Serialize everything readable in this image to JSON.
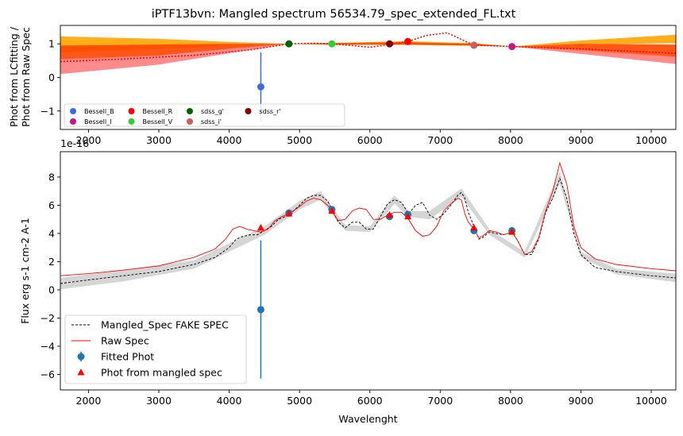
{
  "figure": {
    "title": "iPTF13bvn: Mangled spectrum 56534.79_spec_extended_FL.txt"
  },
  "chart_data": [
    {
      "type": "scatter",
      "panel": "top",
      "title": "iPTF13bvn: Mangled spectrum 56534.79_spec_extended_FL.txt",
      "xlabel": "",
      "ylabel_lines": [
        "Phot from LCfitting /",
        "Phot from Raw Spec"
      ],
      "xlim": [
        1600,
        10350
      ],
      "ylim": [
        -1.55,
        1.55
      ],
      "xticks": [
        2000,
        3000,
        4000,
        5000,
        6000,
        7000,
        8000,
        9000,
        10000
      ],
      "yticks": [
        -1,
        0,
        1
      ],
      "legend": {
        "placement": "lower-left",
        "entries": [
          {
            "label": "Bessell_B",
            "color": "#4169e1"
          },
          {
            "label": "Bessell_I",
            "color": "#c71585"
          },
          {
            "label": "Bessell_R",
            "color": "#ff0000"
          },
          {
            "label": "Bessell_V",
            "color": "#32cd32"
          },
          {
            "label": "sdss_g'",
            "color": "#006400"
          },
          {
            "label": "sdss_i'",
            "color": "#cd5c5c"
          },
          {
            "label": "sdss_r'",
            "color": "#800000"
          }
        ]
      },
      "points": [
        {
          "band": "Bessell_B",
          "x": 4450,
          "y": -0.28,
          "yerr": 1.03,
          "color": "#4169e1"
        },
        {
          "band": "sdss_g'",
          "x": 4850,
          "y": 1.0,
          "yerr": 0,
          "color": "#006400"
        },
        {
          "band": "Bessell_V",
          "x": 5460,
          "y": 1.0,
          "yerr": 0,
          "color": "#32cd32"
        },
        {
          "band": "sdss_r'",
          "x": 6280,
          "y": 1.0,
          "yerr": 0,
          "color": "#800000"
        },
        {
          "band": "Bessell_R",
          "x": 6540,
          "y": 1.07,
          "yerr": 0,
          "color": "#ff0000"
        },
        {
          "band": "sdss_i'",
          "x": 7480,
          "y": 0.96,
          "yerr": 0,
          "color": "#cd5c5c"
        },
        {
          "band": "Bessell_I",
          "x": 8020,
          "y": 0.92,
          "yerr": 0,
          "color": "#c71585"
        }
      ],
      "ratio_curve": {
        "x": [
          1600,
          2500,
          3500,
          4300,
          4850,
          5200,
          5460,
          5750,
          6000,
          6280,
          6540,
          6800,
          7100,
          7480,
          8020,
          9000,
          10350
        ],
        "y": [
          0.47,
          0.55,
          0.66,
          0.82,
          1.0,
          1.02,
          1.0,
          0.95,
          0.9,
          0.98,
          1.07,
          1.25,
          1.33,
          0.96,
          0.92,
          0.85,
          0.72
        ]
      },
      "bands": [
        {
          "color": "#ffa500",
          "x": [
            1600,
            3000,
            4000,
            4850,
            5500,
            6500,
            7500,
            8020,
            9000,
            10350
          ],
          "lower": [
            0.75,
            0.84,
            0.94,
            1.0,
            0.97,
            0.97,
            0.94,
            0.92,
            0.98,
            1.02
          ],
          "upper": [
            1.22,
            1.15,
            1.06,
            1.0,
            1.03,
            1.08,
            1.02,
            0.92,
            1.1,
            1.27
          ]
        },
        {
          "color": "#ff4500",
          "x": [
            1600,
            3000,
            4000,
            4850,
            5500,
            6500,
            7500,
            8020,
            9000,
            10350
          ],
          "lower": [
            0.5,
            0.65,
            0.85,
            1.0,
            0.98,
            0.98,
            0.95,
            0.92,
            0.78,
            0.6
          ],
          "upper": [
            0.95,
            0.98,
            1.0,
            1.0,
            1.02,
            1.05,
            1.0,
            0.92,
            1.0,
            0.98
          ]
        },
        {
          "color": "#ff7f7f",
          "x": [
            1600,
            3000,
            4000,
            4850,
            5500,
            6500,
            7500,
            8020,
            9000,
            10350
          ],
          "lower": [
            0.1,
            0.38,
            0.72,
            1.0,
            1.0,
            1.0,
            0.96,
            0.92,
            0.7,
            0.4
          ],
          "upper": [
            0.55,
            0.65,
            0.85,
            1.0,
            1.0,
            1.0,
            0.96,
            0.92,
            0.82,
            0.62
          ]
        }
      ]
    },
    {
      "type": "line",
      "panel": "bottom",
      "title": "",
      "xlabel": "Wavelenght",
      "ylabel": "Flux erg s-1 cm-2 A-1",
      "offset_text": "1e-16",
      "xlim": [
        1600,
        10350
      ],
      "ylim": [
        -7.1,
        9.8
      ],
      "xticks": [
        2000,
        3000,
        4000,
        5000,
        6000,
        7000,
        8000,
        9000,
        10000
      ],
      "yticks": [
        -6,
        -4,
        -2,
        0,
        2,
        4,
        6,
        8
      ],
      "legend": {
        "placement": "lower-left",
        "entries": [
          {
            "label": "Mangled_Spec FAKE SPEC",
            "style": "dashed-line",
            "color": "#000000"
          },
          {
            "label": "Raw Spec",
            "style": "line",
            "color": "#ff0000"
          },
          {
            "label": "Fitted Phot",
            "style": "errorbar-circle",
            "color": "#1f77b4"
          },
          {
            "label": "Phot from mangled spec",
            "style": "triangle",
            "color": "#ff0000"
          }
        ]
      },
      "series": [
        {
          "name": "Mangled_Spec FAKE SPEC",
          "color": "#000000",
          "style": "dashed",
          "x": [
            1600,
            2000,
            2500,
            3000,
            3500,
            3800,
            4000,
            4100,
            4200,
            4300,
            4400,
            4500,
            4600,
            4700,
            4850,
            5000,
            5100,
            5200,
            5300,
            5400,
            5460,
            5550,
            5650,
            5750,
            5850,
            5950,
            6050,
            6150,
            6250,
            6350,
            6450,
            6550,
            6650,
            6750,
            6850,
            6950,
            7050,
            7150,
            7250,
            7300,
            7350,
            7400,
            7480,
            7550,
            7600,
            7700,
            7800,
            7900,
            8020,
            8100,
            8200,
            8300,
            8400,
            8500,
            8600,
            8700,
            8800,
            8900,
            9000,
            9200,
            9500,
            10000,
            10350
          ],
          "y": [
            0.45,
            0.7,
            1.0,
            1.3,
            1.8,
            2.3,
            3.0,
            3.6,
            3.8,
            3.9,
            3.9,
            4.2,
            4.5,
            5.0,
            5.3,
            6.0,
            6.5,
            6.7,
            6.7,
            6.3,
            5.7,
            4.8,
            4.4,
            4.8,
            4.8,
            4.3,
            4.3,
            5.2,
            6.1,
            6.4,
            6.2,
            5.4,
            6.0,
            6.2,
            5.3,
            5.0,
            5.4,
            6.0,
            6.7,
            6.9,
            6.5,
            5.5,
            4.5,
            3.6,
            3.7,
            4.1,
            4.0,
            3.9,
            4.1,
            3.5,
            2.5,
            2.5,
            3.6,
            5.5,
            6.5,
            7.9,
            6.5,
            4.0,
            2.5,
            1.6,
            1.3,
            1.0,
            0.85
          ]
        },
        {
          "name": "Raw Spec",
          "color": "#ff0000",
          "style": "solid",
          "x": [
            1600,
            2000,
            2500,
            3000,
            3500,
            3800,
            3950,
            4050,
            4150,
            4250,
            4350,
            4450,
            4550,
            4650,
            4750,
            4850,
            5000,
            5100,
            5200,
            5300,
            5400,
            5460,
            5550,
            5650,
            5750,
            5850,
            5950,
            6050,
            6150,
            6250,
            6350,
            6450,
            6550,
            6650,
            6750,
            6850,
            6950,
            7050,
            7150,
            7250,
            7300,
            7350,
            7400,
            7480,
            7550,
            7600,
            7700,
            7800,
            7900,
            8020,
            8100,
            8200,
            8300,
            8400,
            8500,
            8600,
            8700,
            8800,
            8900,
            9000,
            9200,
            9500,
            10000,
            10350
          ],
          "y": [
            1.0,
            1.15,
            1.4,
            1.7,
            2.3,
            2.9,
            3.6,
            4.3,
            4.5,
            4.3,
            4.2,
            4.1,
            4.3,
            4.9,
            5.2,
            5.4,
            5.9,
            6.3,
            6.5,
            6.4,
            6.0,
            5.6,
            4.9,
            5.0,
            5.6,
            5.8,
            5.7,
            5.0,
            5.0,
            5.3,
            5.5,
            5.5,
            5.0,
            4.2,
            3.8,
            3.9,
            4.5,
            5.6,
            6.1,
            6.5,
            6.4,
            5.4,
            4.8,
            4.3,
            3.7,
            3.8,
            4.2,
            4.1,
            3.9,
            4.1,
            3.5,
            2.5,
            2.7,
            3.7,
            5.6,
            7.0,
            9.0,
            7.5,
            4.5,
            3.0,
            2.2,
            1.8,
            1.5,
            1.35
          ]
        }
      ],
      "uncertainty_band": {
        "color": "#d3d3d3",
        "x": [
          1600,
          2500,
          3500,
          4000,
          4500,
          5000,
          5300,
          5650,
          6000,
          6350,
          6550,
          6850,
          7300,
          7700,
          8200,
          8700,
          9000,
          9500,
          10350
        ],
        "lower": [
          0.05,
          0.6,
          1.5,
          2.7,
          3.9,
          5.7,
          6.4,
          4.2,
          4.1,
          6.1,
          5.2,
          5.0,
          6.6,
          3.9,
          2.3,
          7.5,
          2.3,
          1.1,
          0.55
        ],
        "upper": [
          0.85,
          1.4,
          2.1,
          3.3,
          4.5,
          6.3,
          7.0,
          4.6,
          4.5,
          6.7,
          5.6,
          5.6,
          7.2,
          4.3,
          2.7,
          8.4,
          2.7,
          1.5,
          1.15
        ]
      },
      "fitted_phot": [
        {
          "x": 4450,
          "y": -1.4,
          "yerr": 4.9
        },
        {
          "x": 4850,
          "y": 5.45,
          "yerr": 0
        },
        {
          "x": 5460,
          "y": 5.7,
          "yerr": 0
        },
        {
          "x": 6280,
          "y": 5.2,
          "yerr": 0
        },
        {
          "x": 6540,
          "y": 5.35,
          "yerr": 0
        },
        {
          "x": 7480,
          "y": 4.2,
          "yerr": 0
        },
        {
          "x": 8020,
          "y": 4.2,
          "yerr": 0
        }
      ],
      "phot_from_mangled_spec": [
        {
          "x": 4450,
          "y": 4.4
        },
        {
          "x": 4850,
          "y": 5.4
        },
        {
          "x": 5460,
          "y": 5.6
        },
        {
          "x": 6280,
          "y": 5.3
        },
        {
          "x": 6540,
          "y": 5.2
        },
        {
          "x": 7480,
          "y": 4.4
        },
        {
          "x": 8020,
          "y": 4.1
        }
      ]
    }
  ]
}
